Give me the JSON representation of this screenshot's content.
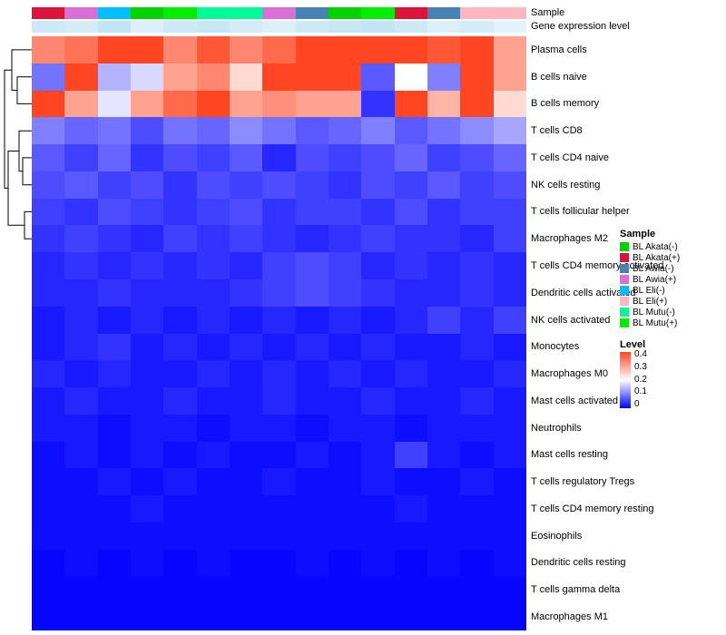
{
  "annotations": {
    "sample_label": "Sample",
    "gene_label": "Gene expression level",
    "sample_colors": [
      "#DC143C",
      "#DA70D6",
      "#00BFFF",
      "#00D400",
      "#00EE00",
      "#00FA9A",
      "#00FA9A",
      "#DA70D6",
      "#4682B4",
      "#00D400",
      "#00EE00",
      "#DC143C",
      "#4682B4",
      "#FFB6C1",
      "#FFB6C1"
    ],
    "gene_colors": [
      "#CDE9F6",
      "#D4ECF8",
      "#C2E5F4",
      "#DCF0FA",
      "#CDE9F6",
      "#C8E7F5",
      "#D4ECF8",
      "#DCF0FA",
      "#CDE9F6",
      "#C8E7F5",
      "#C2E5F4",
      "#CDE9F6",
      "#DCF0FA",
      "#D4ECF8",
      "#E2F3FB"
    ]
  },
  "chart_data": {
    "type": "heatmap",
    "columns_count": 15,
    "rows": [
      "Plasma cells",
      "B cells naive",
      "B cells memory",
      "T cells CD8",
      "T cells CD4 naive",
      "NK cells resting",
      "T cells follicular helper",
      "Macrophages M2",
      "T cells CD4 memory activated",
      "Dendritic cells activated",
      "NK cells activated",
      "Monocytes",
      "Macrophages M0",
      "Mast cells activated",
      "Neutrophils",
      "Mast cells resting",
      "T cells regulatory  Tregs",
      "T cells CD4 memory resting",
      "Eosinophils",
      "Dendritic cells resting",
      "T cells gamma delta",
      "Macrophages M1"
    ],
    "values": [
      [
        0.33,
        0.35,
        0.4,
        0.42,
        0.33,
        0.38,
        0.33,
        0.36,
        0.42,
        0.4,
        0.43,
        0.42,
        0.38,
        0.4,
        0.3
      ],
      [
        0.09,
        0.43,
        0.14,
        0.17,
        0.3,
        0.33,
        0.24,
        0.43,
        0.43,
        0.41,
        0.07,
        0.2,
        0.1,
        0.42,
        0.3
      ],
      [
        0.43,
        0.3,
        0.18,
        0.3,
        0.36,
        0.4,
        0.3,
        0.32,
        0.3,
        0.3,
        0.04,
        0.42,
        0.28,
        0.43,
        0.24
      ],
      [
        0.1,
        0.08,
        0.09,
        0.06,
        0.09,
        0.08,
        0.11,
        0.09,
        0.07,
        0.08,
        0.1,
        0.07,
        0.09,
        0.11,
        0.13
      ],
      [
        0.07,
        0.05,
        0.08,
        0.04,
        0.06,
        0.05,
        0.07,
        0.03,
        0.06,
        0.05,
        0.06,
        0.08,
        0.05,
        0.06,
        0.08
      ],
      [
        0.06,
        0.07,
        0.05,
        0.06,
        0.04,
        0.06,
        0.05,
        0.06,
        0.05,
        0.04,
        0.06,
        0.05,
        0.07,
        0.05,
        0.06
      ],
      [
        0.05,
        0.04,
        0.06,
        0.05,
        0.04,
        0.05,
        0.06,
        0.04,
        0.05,
        0.05,
        0.04,
        0.06,
        0.04,
        0.05,
        0.05
      ],
      [
        0.04,
        0.05,
        0.04,
        0.03,
        0.05,
        0.04,
        0.05,
        0.04,
        0.03,
        0.04,
        0.05,
        0.04,
        0.04,
        0.03,
        0.05
      ],
      [
        0.03,
        0.04,
        0.03,
        0.04,
        0.03,
        0.04,
        0.03,
        0.05,
        0.06,
        0.05,
        0.03,
        0.04,
        0.03,
        0.04,
        0.03
      ],
      [
        0.03,
        0.03,
        0.04,
        0.03,
        0.03,
        0.03,
        0.04,
        0.05,
        0.06,
        0.05,
        0.04,
        0.03,
        0.03,
        0.04,
        0.03
      ],
      [
        0.02,
        0.03,
        0.02,
        0.03,
        0.02,
        0.03,
        0.02,
        0.03,
        0.02,
        0.03,
        0.02,
        0.03,
        0.05,
        0.03,
        0.05
      ],
      [
        0.02,
        0.03,
        0.04,
        0.02,
        0.03,
        0.02,
        0.03,
        0.02,
        0.03,
        0.02,
        0.03,
        0.02,
        0.02,
        0.03,
        0.02
      ],
      [
        0.03,
        0.02,
        0.03,
        0.02,
        0.02,
        0.03,
        0.02,
        0.03,
        0.02,
        0.03,
        0.02,
        0.03,
        0.02,
        0.02,
        0.03
      ],
      [
        0.02,
        0.03,
        0.02,
        0.02,
        0.03,
        0.02,
        0.02,
        0.03,
        0.02,
        0.02,
        0.03,
        0.02,
        0.02,
        0.03,
        0.02
      ],
      [
        0.02,
        0.02,
        0.01,
        0.02,
        0.02,
        0.01,
        0.02,
        0.02,
        0.01,
        0.02,
        0.02,
        0.01,
        0.02,
        0.02,
        0.02
      ],
      [
        0.01,
        0.02,
        0.01,
        0.02,
        0.01,
        0.02,
        0.01,
        0.01,
        0.02,
        0.01,
        0.02,
        0.05,
        0.02,
        0.01,
        0.02
      ],
      [
        0.01,
        0.01,
        0.02,
        0.01,
        0.02,
        0.01,
        0.01,
        0.02,
        0.01,
        0.01,
        0.02,
        0.01,
        0.01,
        0.02,
        0.01
      ],
      [
        0.01,
        0.01,
        0.01,
        0.02,
        0.01,
        0.01,
        0.01,
        0.01,
        0.01,
        0.01,
        0.01,
        0.02,
        0.01,
        0.01,
        0.01
      ],
      [
        0.01,
        0.01,
        0.01,
        0.01,
        0.01,
        0.01,
        0.01,
        0.01,
        0.01,
        0.01,
        0.01,
        0.01,
        0.01,
        0.01,
        0.01
      ],
      [
        0.005,
        0.01,
        0.005,
        0.01,
        0.005,
        0.01,
        0.005,
        0.005,
        0.01,
        0.005,
        0.01,
        0.005,
        0.01,
        0.005,
        0.01
      ],
      [
        0.005,
        0.005,
        0.005,
        0.005,
        0.005,
        0.005,
        0.005,
        0.005,
        0.005,
        0.005,
        0.005,
        0.005,
        0.005,
        0.005,
        0.005
      ],
      [
        0.005,
        0.005,
        0.005,
        0.005,
        0.005,
        0.005,
        0.005,
        0.005,
        0.005,
        0.005,
        0.005,
        0.005,
        0.005,
        0.005,
        0.005
      ]
    ],
    "value_range": [
      0,
      0.4
    ],
    "colorscale": {
      "low": "#0000FF",
      "mid": "#FFFFFF",
      "high": "#FF4521",
      "midpoint": 0.2
    },
    "grid": false,
    "legend_position": "right"
  },
  "legend": {
    "sample_title": "Sample",
    "sample_items": [
      {
        "label": "BL Akata(-)",
        "color": "#00D400"
      },
      {
        "label": "BL Akata(+)",
        "color": "#DC143C"
      },
      {
        "label": "BL Awia(-)",
        "color": "#4682B4"
      },
      {
        "label": "BL Awia(+)",
        "color": "#DA70D6"
      },
      {
        "label": "BL Eli(-)",
        "color": "#00BFFF"
      },
      {
        "label": "BL Eli(+)",
        "color": "#FFB6C1"
      },
      {
        "label": "BL Mutu(-)",
        "color": "#00FA9A"
      },
      {
        "label": "BL Mutu(+)",
        "color": "#00EE00"
      }
    ],
    "level_title": "Level",
    "level_ticks": [
      "0.4",
      "0.3",
      "0.2",
      "0.1",
      "0"
    ],
    "level_gradient": [
      "#0000FF",
      "#FFFFFF",
      "#FF4521"
    ]
  }
}
